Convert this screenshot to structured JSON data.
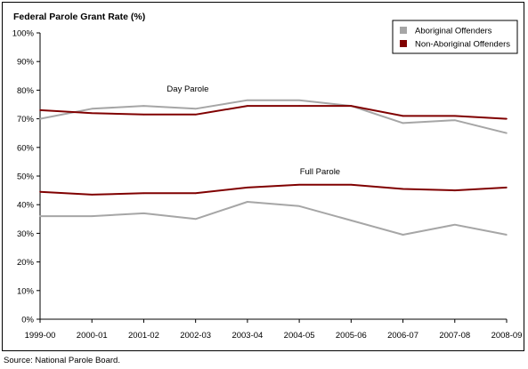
{
  "source": "Source: National Parole Board.",
  "chart_data": {
    "type": "line",
    "title": "Federal Parole Grant Rate (%)",
    "xlabel": "",
    "ylabel": "",
    "categories": [
      "1999-00",
      "2000-01",
      "2001-02",
      "2002-03",
      "2003-04",
      "2004-05",
      "2005-06",
      "2006-07",
      "2007-08",
      "2008-09"
    ],
    "ylim": [
      0,
      100
    ],
    "yticks": [
      0,
      10,
      20,
      30,
      40,
      50,
      60,
      70,
      80,
      90,
      100
    ],
    "ytick_labels": [
      "0%",
      "10%",
      "20%",
      "30%",
      "40%",
      "50%",
      "60%",
      "70%",
      "80%",
      "90%",
      "100%"
    ],
    "grid": false,
    "legend_position": "top-right",
    "legend": [
      {
        "name": "Aboriginal Offenders",
        "color": "#a6a6a6"
      },
      {
        "name": "Non-Aboriginal Offenders",
        "color": "#800000"
      }
    ],
    "annotations": [
      {
        "text": "Day Parole",
        "x": "2001-02",
        "x_offset": 0.85,
        "y": 80.5
      },
      {
        "text": "Full Parole",
        "x": "2004-05",
        "x_offset": 0.4,
        "y": 51.5
      }
    ],
    "series": [
      {
        "group": "Day Parole",
        "legend_entry": "Aboriginal Offenders",
        "color": "#a6a6a6",
        "values": [
          70,
          73.5,
          74.5,
          73.5,
          76.5,
          76.5,
          74.5,
          68.5,
          69.5,
          65
        ]
      },
      {
        "group": "Day Parole",
        "legend_entry": "Non-Aboriginal Offenders",
        "color": "#800000",
        "values": [
          73,
          72,
          71.5,
          71.5,
          74.5,
          74.5,
          74.5,
          71,
          71,
          70
        ]
      },
      {
        "group": "Full Parole",
        "legend_entry": "Non-Aboriginal Offenders",
        "color": "#800000",
        "values": [
          44.5,
          43.5,
          44,
          44,
          46,
          47,
          47,
          45.5,
          45,
          46
        ]
      },
      {
        "group": "Full Parole",
        "legend_entry": "Aboriginal Offenders",
        "color": "#a6a6a6",
        "values": [
          36,
          36,
          37,
          35,
          41,
          39.5,
          34.5,
          29.5,
          33,
          29.5
        ]
      }
    ]
  }
}
